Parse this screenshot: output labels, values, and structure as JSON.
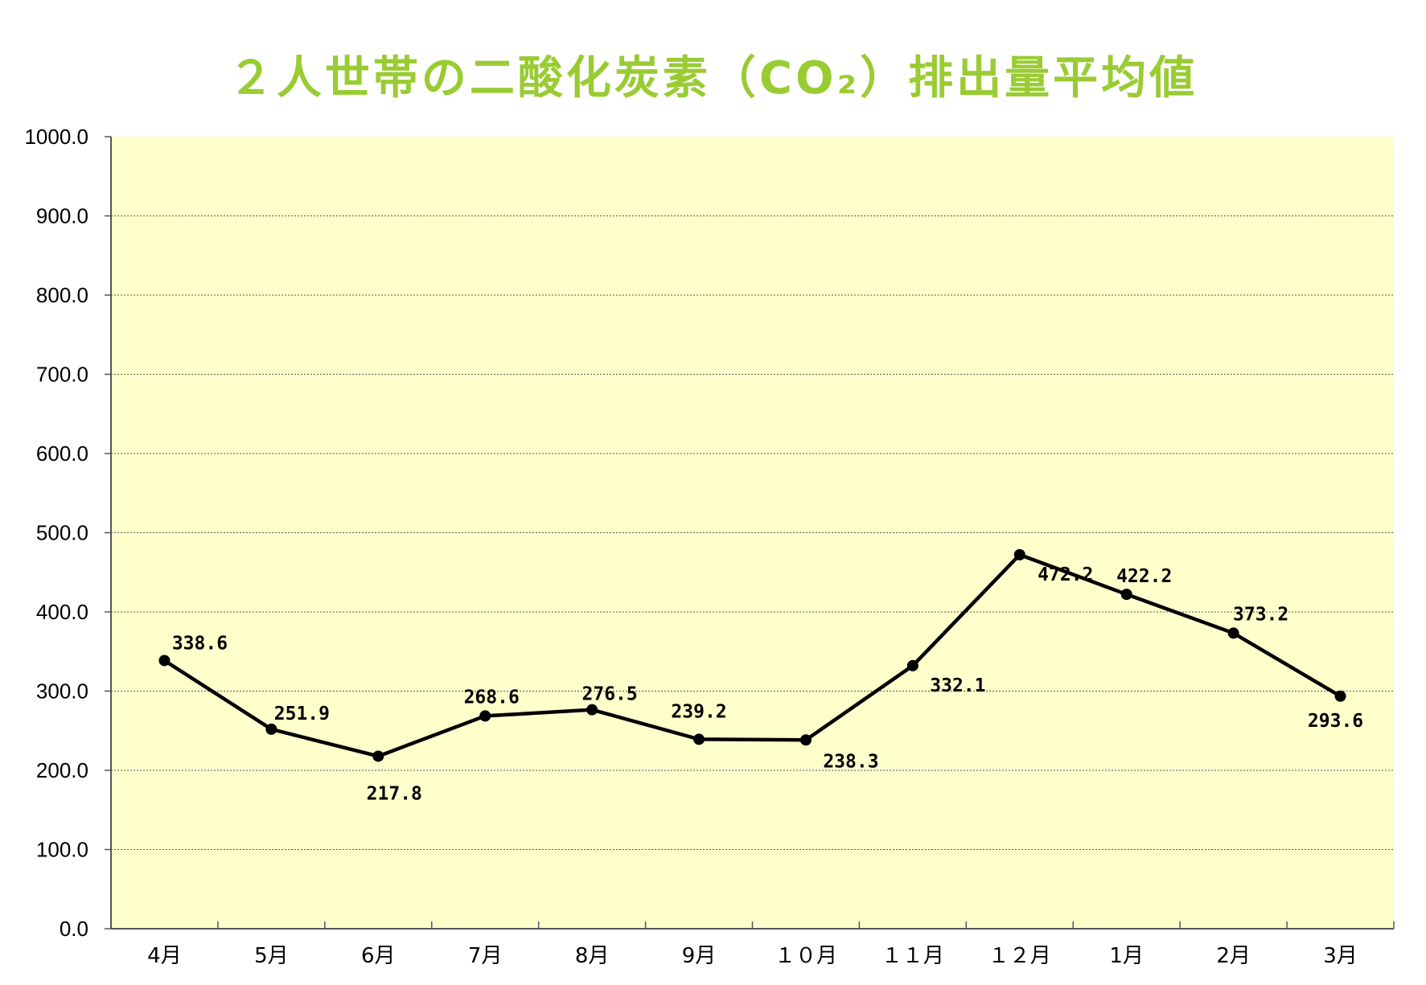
{
  "chart_data": {
    "type": "line",
    "title": "２人世帯の二酸化炭素（CO₂）排出量平均値",
    "xlabel": "",
    "ylabel": "",
    "categories": [
      "4月",
      "5月",
      "6月",
      "7月",
      "8月",
      "9月",
      "１０月",
      "１１月",
      "１２月",
      "1月",
      "2月",
      "3月"
    ],
    "series": [
      {
        "values": [
          338.6,
          251.9,
          217.8,
          268.6,
          276.5,
          239.2,
          238.3,
          332.1,
          472.2,
          422.2,
          373.2,
          293.6
        ]
      }
    ],
    "data_labels": [
      "338.6",
      "251.9",
      "217.8",
      "268.6",
      "276.5",
      "239.2",
      "238.3",
      "332.1",
      "472.2",
      "422.2",
      "373.2",
      "293.6"
    ],
    "ylim": [
      0,
      1000
    ],
    "yticks": [
      "0.0",
      "100.0",
      "200.0",
      "300.0",
      "400.0",
      "500.0",
      "600.0",
      "700.0",
      "800.0",
      "900.0",
      "1000.0"
    ],
    "grid": true,
    "legend": "none",
    "colors": {
      "title": "#99cc33",
      "plot_background": "#ffffcc",
      "line": "#000000",
      "gridline": "#555555"
    }
  }
}
